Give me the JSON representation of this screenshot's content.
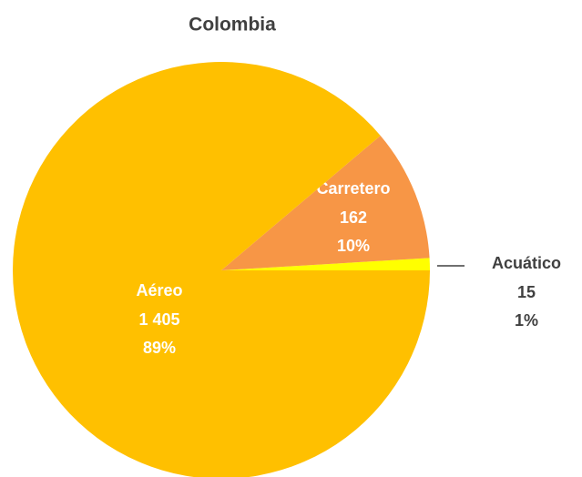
{
  "chart_data": {
    "type": "pie",
    "title": "Colombia",
    "categories": [
      "Acuático",
      "Carretero",
      "Aéreo"
    ],
    "values": [
      15,
      162,
      1405
    ],
    "value_labels": [
      "15",
      "162",
      "1 405"
    ],
    "percent_labels": [
      "1%",
      "10%",
      "89%"
    ],
    "colors": [
      "#ffff00",
      "#f79646",
      "#ffc000"
    ]
  }
}
